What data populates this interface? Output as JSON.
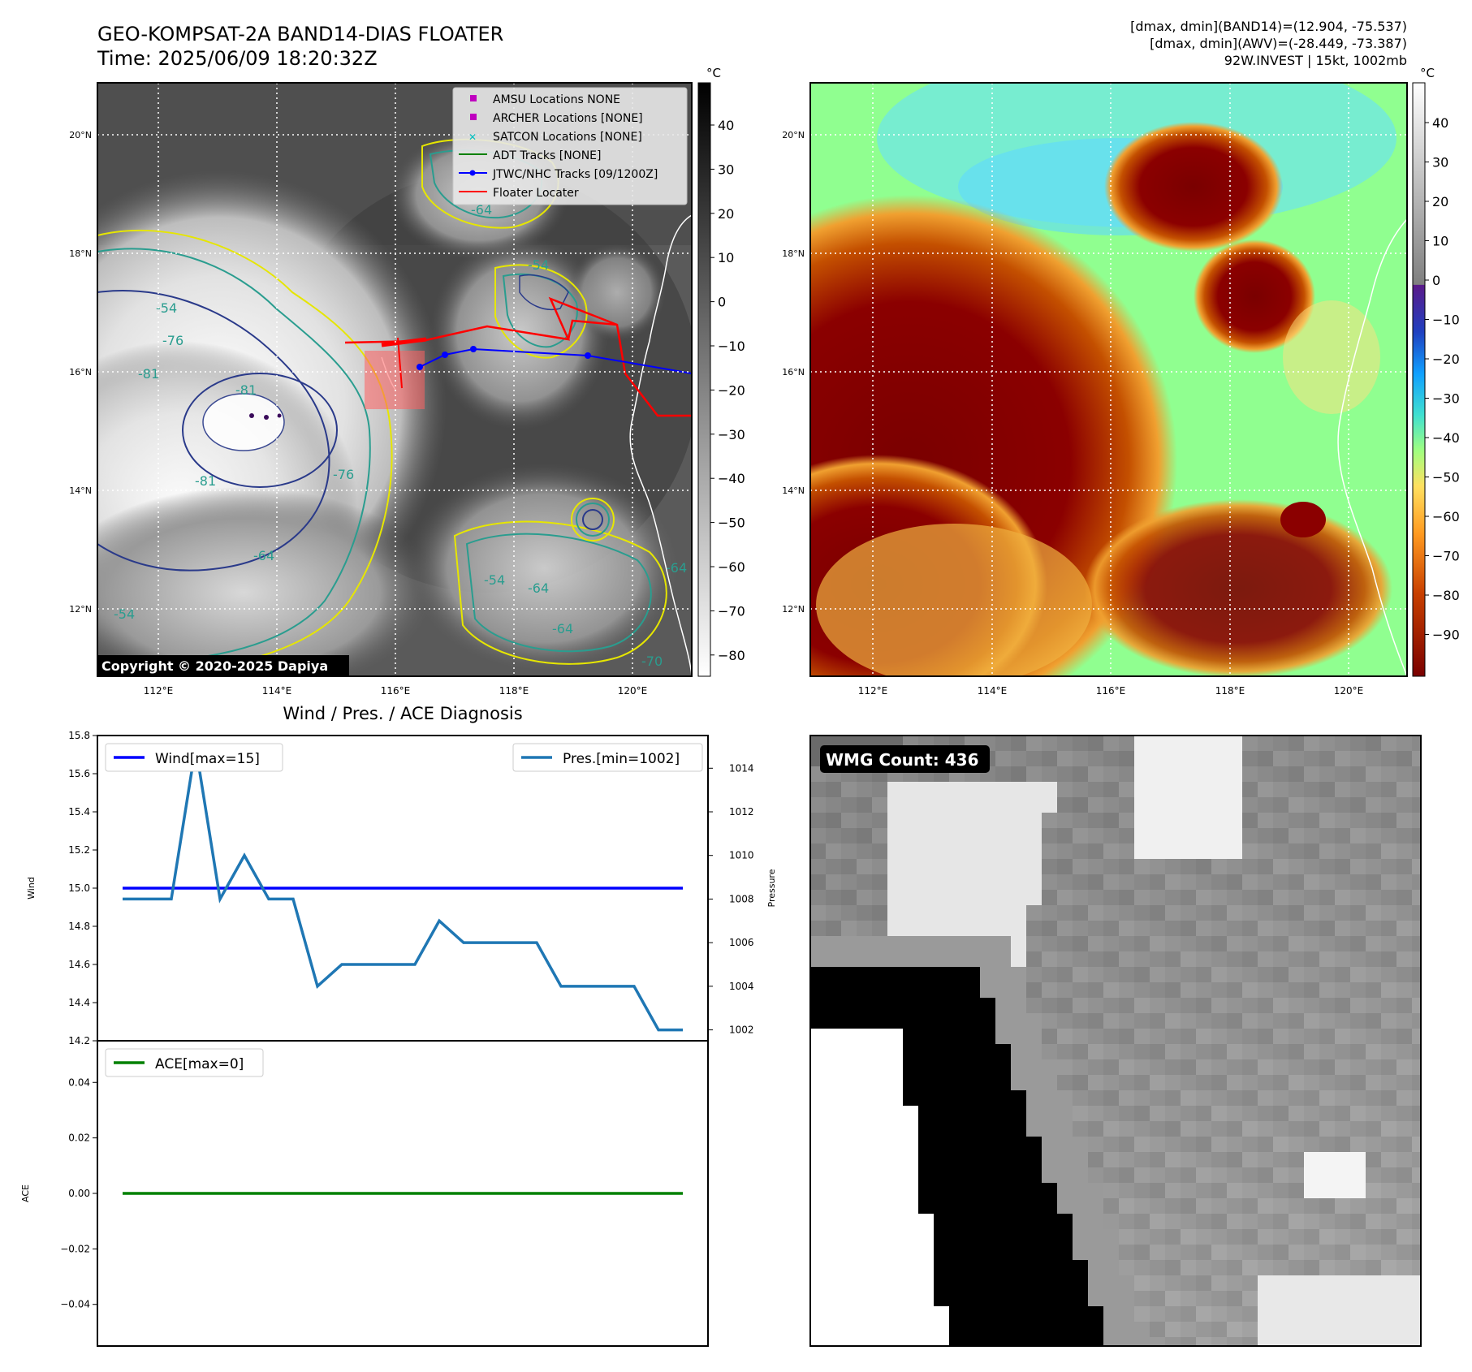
{
  "header": {
    "title_line1": "GEO-KOMPSAT-2A BAND14-DIAS FLOATER",
    "title_line2": "Time: 2025/06/09 18:20:32Z",
    "info_line1": "[dmax, dmin](BAND14)=(12.904, -75.537)",
    "info_line2": "[dmax, dmin](AWV)=(-28.449, -73.387)",
    "info_line3": "92W.INVEST | 15kt, 1002mb"
  },
  "map": {
    "lon_ticks": [
      "112°E",
      "114°E",
      "116°E",
      "118°E",
      "120°E"
    ],
    "lat_ticks": [
      "20°N",
      "18°N",
      "16°N",
      "14°N",
      "12°N"
    ],
    "copyright": "Copyright © 2020-2025 Dapiya",
    "colorbar_unit": "°C",
    "contour_labels": [
      "-64",
      "-54",
      "-54",
      "-76",
      "-81",
      "-81",
      "-81",
      "-76",
      "-64",
      "-54",
      "-64",
      "-54",
      "-64",
      "-64",
      "-70"
    ],
    "legend": [
      {
        "label": "AMSU Locations NONE",
        "color": "#bf00bf",
        "marker": "square"
      },
      {
        "label": "ARCHER Locations [NONE]",
        "color": "#bf00bf",
        "marker": "square"
      },
      {
        "label": "SATCON Locations [NONE]",
        "color": "#00bfbf",
        "marker": "x"
      },
      {
        "label": "ADT Tracks [NONE]",
        "color": "#008000",
        "marker": "line"
      },
      {
        "label": "JTWC/NHC Tracks [09/1200Z]",
        "color": "#0000ff",
        "marker": "line-dot"
      },
      {
        "label": "Floater Locater",
        "color": "#ff0000",
        "marker": "line"
      }
    ]
  },
  "colorbar_left": {
    "ticks": [
      "40",
      "30",
      "20",
      "10",
      "0",
      "−10",
      "−20",
      "−30",
      "−40",
      "−50",
      "−60",
      "−70",
      "−80"
    ]
  },
  "colorbar_right": {
    "unit": "°C",
    "ticks": [
      "40",
      "30",
      "20",
      "10",
      "0",
      "−10",
      "−20",
      "−30",
      "−40",
      "−50",
      "−60",
      "−70",
      "−80",
      "−90"
    ]
  },
  "wind_panel": {
    "title": "Wind / Pres. / ACE Diagnosis",
    "ylabel_left": "Wind",
    "ylabel_right": "Pressure",
    "legend_wind": "Wind[max=15]",
    "legend_pres": "Pres.[min=1002]"
  },
  "ace_panel": {
    "ylabel": "ACE",
    "legend": "ACE[max=0]"
  },
  "wmg": {
    "label": "WMG Count: 436"
  },
  "chart_data": [
    {
      "type": "line",
      "title": "Wind / Pres. / ACE Diagnosis",
      "ylabel": "Wind",
      "ylim": [
        14.2,
        15.8
      ],
      "yticks": [
        14.2,
        14.4,
        14.6,
        14.8,
        15.0,
        15.2,
        15.4,
        15.6,
        15.8
      ],
      "y2label": "Pressure",
      "y2lim": [
        1001.5,
        1015.5
      ],
      "y2ticks": [
        1002,
        1004,
        1006,
        1008,
        1010,
        1012,
        1014
      ],
      "x": [
        0,
        1,
        2,
        3,
        4,
        5,
        6,
        7,
        8,
        9,
        10,
        11,
        12,
        13,
        14,
        15,
        16,
        17,
        18,
        19,
        20,
        21,
        22,
        23
      ],
      "series": [
        {
          "name": "Wind[max=15]",
          "axis": "left",
          "color": "#0000ff",
          "values": [
            15,
            15,
            15,
            15,
            15,
            15,
            15,
            15,
            15,
            15,
            15,
            15,
            15,
            15,
            15,
            15,
            15,
            15,
            15,
            15,
            15,
            15,
            15,
            15
          ]
        },
        {
          "name": "Pres.[min=1002]",
          "axis": "right",
          "color": "#1f77b4",
          "values": [
            1008,
            1008,
            1008,
            1015,
            1008,
            1010,
            1008,
            1008,
            1004,
            1005,
            1005,
            1005,
            1005,
            1007,
            1006,
            1006,
            1006,
            1006,
            1004,
            1004,
            1004,
            1004,
            1002,
            1002
          ]
        }
      ]
    },
    {
      "type": "line",
      "ylabel": "ACE",
      "ylim": [
        -0.055,
        0.055
      ],
      "yticks": [
        -0.04,
        -0.02,
        0.0,
        0.02,
        0.04
      ],
      "yticklabels": [
        "−0.04",
        "−0.02",
        "0.00",
        "0.02",
        "0.04"
      ],
      "x": [
        0,
        1,
        2,
        3,
        4,
        5,
        6,
        7,
        8,
        9,
        10,
        11,
        12,
        13,
        14,
        15,
        16,
        17,
        18,
        19,
        20,
        21,
        22,
        23
      ],
      "series": [
        {
          "name": "ACE[max=0]",
          "color": "#008000",
          "values": [
            0,
            0,
            0,
            0,
            0,
            0,
            0,
            0,
            0,
            0,
            0,
            0,
            0,
            0,
            0,
            0,
            0,
            0,
            0,
            0,
            0,
            0,
            0,
            0
          ]
        }
      ]
    }
  ]
}
